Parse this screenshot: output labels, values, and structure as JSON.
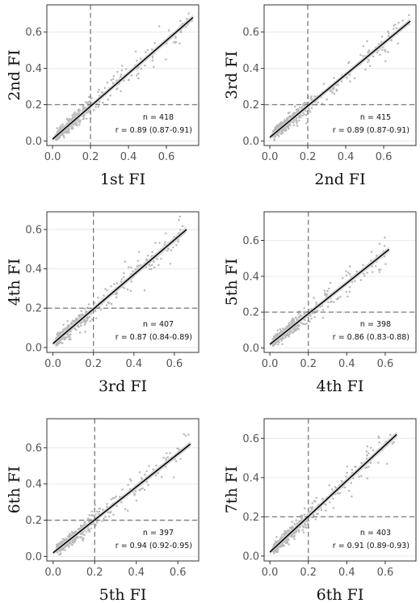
{
  "chart_data": [
    {
      "type": "scatter",
      "xlabel": "1st FI",
      "ylabel": "2nd FI",
      "xlim": [
        -0.03,
        0.77
      ],
      "ylim": [
        -0.025,
        0.75
      ],
      "xticks": [
        "0.0",
        "0.2",
        "0.4",
        "0.6"
      ],
      "yticks": [
        "0.0",
        "0.2",
        "0.4",
        "0.6"
      ],
      "grid": "horizontal",
      "reference_lines": {
        "x": 0.2,
        "y": 0.2
      },
      "fit_line": {
        "x": [
          0.0,
          0.74
        ],
        "y": [
          0.01,
          0.68
        ]
      },
      "x_range": [
        0.0,
        0.74
      ],
      "n_points": 418,
      "annotation": {
        "n": "n = 418",
        "r": "r = 0.89 (0.87-0.91)"
      }
    },
    {
      "type": "scatter",
      "xlabel": "2nd FI",
      "ylabel": "3rd FI",
      "xlim": [
        -0.03,
        0.77
      ],
      "ylim": [
        -0.025,
        0.75
      ],
      "xticks": [
        "0.0",
        "0.2",
        "0.4",
        "0.6"
      ],
      "yticks": [
        "0.0",
        "0.2",
        "0.4",
        "0.6"
      ],
      "grid": "horizontal",
      "reference_lines": {
        "x": 0.2,
        "y": 0.2
      },
      "fit_line": {
        "x": [
          0.0,
          0.74
        ],
        "y": [
          0.02,
          0.66
        ]
      },
      "x_range": [
        0.0,
        0.74
      ],
      "n_points": 415,
      "annotation": {
        "n": "n = 415",
        "r": "r = 0.89 (0.87-0.91)"
      }
    },
    {
      "type": "scatter",
      "xlabel": "3rd FI",
      "ylabel": "4th FI",
      "xlim": [
        -0.03,
        0.72
      ],
      "ylim": [
        -0.025,
        0.69
      ],
      "xticks": [
        "0.0",
        "0.2",
        "0.4",
        "0.6"
      ],
      "yticks": [
        "0.0",
        "0.2",
        "0.4",
        "0.6"
      ],
      "grid": "horizontal",
      "reference_lines": {
        "x": 0.2,
        "y": 0.2
      },
      "fit_line": {
        "x": [
          0.0,
          0.66
        ],
        "y": [
          0.02,
          0.6
        ]
      },
      "x_range": [
        0.0,
        0.66
      ],
      "n_points": 407,
      "annotation": {
        "n": "n = 407",
        "r": "r = 0.87 (0.84-0.89)"
      }
    },
    {
      "type": "scatter",
      "xlabel": "4th FI",
      "ylabel": "5th FI",
      "xlim": [
        -0.03,
        0.76
      ],
      "ylim": [
        -0.025,
        0.76
      ],
      "xticks": [
        "0.0",
        "0.2",
        "0.4",
        "0.6"
      ],
      "yticks": [
        "0.0",
        "0.2",
        "0.4",
        "0.6"
      ],
      "grid": "horizontal",
      "reference_lines": {
        "x": 0.2,
        "y": 0.2
      },
      "fit_line": {
        "x": [
          0.0,
          0.62
        ],
        "y": [
          0.02,
          0.55
        ]
      },
      "x_range": [
        0.0,
        0.62
      ],
      "n_points": 398,
      "annotation": {
        "n": "n = 398",
        "r": "r = 0.86 (0.83-0.88)"
      }
    },
    {
      "type": "scatter",
      "xlabel": "5th FI",
      "ylabel": "6th FI",
      "xlim": [
        -0.03,
        0.7
      ],
      "ylim": [
        -0.025,
        0.76
      ],
      "xticks": [
        "0.0",
        "0.2",
        "0.4",
        "0.6"
      ],
      "yticks": [
        "0.0",
        "0.2",
        "0.4",
        "0.6"
      ],
      "grid": "horizontal",
      "reference_lines": {
        "x": 0.2,
        "y": 0.2
      },
      "fit_line": {
        "x": [
          0.0,
          0.66
        ],
        "y": [
          0.02,
          0.62
        ]
      },
      "x_range": [
        0.0,
        0.66
      ],
      "n_points": 397,
      "annotation": {
        "n": "n = 397",
        "r": "r = 0.94 (0.92-0.95)"
      }
    },
    {
      "type": "scatter",
      "xlabel": "6th FI",
      "ylabel": "7th FI",
      "xlim": [
        -0.03,
        0.76
      ],
      "ylim": [
        -0.025,
        0.7
      ],
      "xticks": [
        "0.0",
        "0.2",
        "0.4",
        "0.6"
      ],
      "yticks": [
        "0.0",
        "0.2",
        "0.4",
        "0.6"
      ],
      "grid": "horizontal",
      "reference_lines": {
        "x": 0.2,
        "y": 0.2
      },
      "fit_line": {
        "x": [
          0.0,
          0.66
        ],
        "y": [
          0.02,
          0.62
        ]
      },
      "x_range": [
        0.0,
        0.66
      ],
      "n_points": 403,
      "annotation": {
        "n": "n = 403",
        "r": "r = 0.91 (0.89-0.93)"
      }
    }
  ],
  "colors": {
    "points": "#b9b9b9",
    "fit_line": "#000000",
    "confidence_band": "#d0d0d0",
    "reference_lines": "#7a7a7a",
    "grid": "#ebebeb",
    "panel_border": "#333333"
  }
}
